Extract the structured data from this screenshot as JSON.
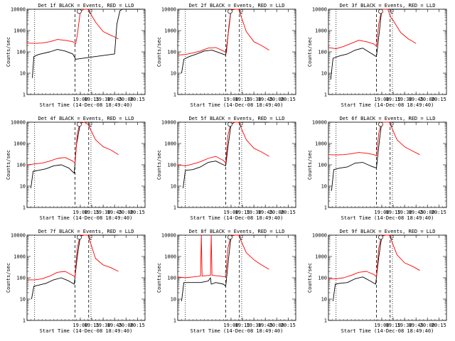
{
  "figure": {
    "xlabel": "Start Time (14-Dec-08 18:49:40)",
    "ylabel": "Counts/sec",
    "marker_o": "O",
    "marker_l": "L"
  },
  "colors": {
    "events": "#000000",
    "lld": "#ff0000",
    "axes": "#000000"
  },
  "chart_data": [
    {
      "type": "line",
      "title": "Det 1f BLACK = Events, RED = LLD",
      "xlabel": "Start Time (14-Dec-08 18:49:40)",
      "ylabel": "Counts/sec",
      "yscale": "log",
      "ylim": [
        1,
        10000
      ],
      "xlim": [
        "17:50",
        "20:25"
      ],
      "xticks": [
        "19:00",
        "19:15",
        "19:30",
        "19:45",
        "20:00",
        "20:15"
      ],
      "yticks": [
        "1",
        "10",
        "100",
        "1000",
        "10000"
      ],
      "grid": false,
      "series": [
        {
          "name": "Events",
          "x": [
            "17:57",
            "17:59",
            "18:05",
            "18:20",
            "18:30",
            "18:40",
            "18:50",
            "18:54",
            "19:45",
            "19:48",
            "19:52",
            "19:55",
            "20:00",
            "20:10",
            "20:20"
          ],
          "y": [
            6,
            60,
            75,
            100,
            130,
            110,
            80,
            45,
            80,
            2000,
            8500,
            10000,
            10000,
            10000,
            10000
          ]
        },
        {
          "name": "LLD",
          "x": [
            "17:50",
            "18:00",
            "18:10",
            "18:20",
            "18:30",
            "18:40",
            "18:50",
            "18:54",
            "18:56",
            "19:00",
            "19:05",
            "19:10",
            "19:20",
            "19:30",
            "19:40",
            "19:45",
            "19:50"
          ],
          "y": [
            260,
            250,
            260,
            300,
            380,
            350,
            300,
            240,
            600,
            8000,
            10000,
            10000,
            2500,
            900,
            600,
            500,
            400
          ]
        }
      ],
      "vlines": [
        "18:00",
        "18:53",
        "19:11",
        "19:14"
      ]
    },
    {
      "type": "line",
      "title": "Det 2f BLACK = Events, RED = LLD",
      "xlabel": "Start Time (14-Dec-08 18:49:40)",
      "ylabel": "Counts/sec",
      "yscale": "log",
      "ylim": [
        1,
        10000
      ],
      "xlim": [
        "17:50",
        "20:25"
      ],
      "xticks": [
        "19:00",
        "19:15",
        "19:30",
        "19:45",
        "20:00",
        "20:15"
      ],
      "yticks": [
        "1",
        "10",
        "100",
        "1000",
        "10000"
      ],
      "grid": false,
      "series": [
        {
          "name": "Events",
          "x": [
            "17:55",
            "17:58",
            "18:05",
            "18:15",
            "18:25",
            "18:35",
            "18:45",
            "18:53",
            "18:56",
            "19:00",
            "19:05",
            "19:10",
            "19:25",
            "19:50"
          ],
          "y": [
            10,
            45,
            60,
            80,
            110,
            120,
            90,
            70,
            600,
            9000,
            10000,
            10000,
            10000,
            10000
          ]
        },
        {
          "name": "LLD",
          "x": [
            "17:50",
            "18:00",
            "18:10",
            "18:20",
            "18:30",
            "18:40",
            "18:50",
            "18:54",
            "18:57",
            "19:00",
            "19:05",
            "19:10",
            "19:20",
            "19:30",
            "19:40",
            "19:50"
          ],
          "y": [
            70,
            75,
            90,
            110,
            150,
            160,
            110,
            90,
            1500,
            10000,
            10000,
            10000,
            900,
            300,
            200,
            120
          ]
        }
      ],
      "vlines": [
        "18:00",
        "18:53",
        "19:11",
        "19:14"
      ]
    },
    {
      "type": "line",
      "title": "Det 3f BLACK = Events, RED = LLD",
      "xlabel": "Start Time (14-Dec-08 18:49:40)",
      "ylabel": "Counts/sec",
      "yscale": "log",
      "ylim": [
        1,
        10000
      ],
      "xlim": [
        "17:50",
        "20:25"
      ],
      "xticks": [
        "19:00",
        "19:15",
        "19:30",
        "19:45",
        "20:00",
        "20:15"
      ],
      "yticks": [
        "1",
        "10",
        "100",
        "1000",
        "10000"
      ],
      "grid": false,
      "series": [
        {
          "name": "Events",
          "x": [
            "17:53",
            "17:56",
            "18:05",
            "18:15",
            "18:25",
            "18:35",
            "18:45",
            "18:53",
            "18:57",
            "19:00",
            "19:05",
            "19:50"
          ],
          "y": [
            5,
            50,
            65,
            80,
            120,
            150,
            90,
            60,
            1000,
            10000,
            10000,
            10000
          ]
        },
        {
          "name": "LLD",
          "x": [
            "17:50",
            "18:00",
            "18:10",
            "18:20",
            "18:30",
            "18:40",
            "18:50",
            "18:53",
            "18:56",
            "19:00",
            "19:08",
            "19:12",
            "19:15",
            "19:25",
            "19:35",
            "19:45"
          ],
          "y": [
            160,
            140,
            180,
            250,
            350,
            300,
            230,
            180,
            2000,
            10000,
            10000,
            4000,
            3000,
            800,
            400,
            250
          ]
        }
      ],
      "vlines": [
        "18:00",
        "18:53",
        "19:11",
        "19:14"
      ]
    },
    {
      "type": "line",
      "title": "Det 4f BLACK = Events, RED = LLD",
      "xlabel": "Start Time (14-Dec-08 18:49:40)",
      "ylabel": "Counts/sec",
      "yscale": "log",
      "ylim": [
        1,
        10000
      ],
      "xlim": [
        "17:50",
        "20:25"
      ],
      "xticks": [
        "19:00",
        "19:15",
        "19:30",
        "19:45",
        "20:00",
        "20:15"
      ],
      "yticks": [
        "1",
        "10",
        "100",
        "1000",
        "10000"
      ],
      "grid": false,
      "series": [
        {
          "name": "Events",
          "x": [
            "17:55",
            "17:58",
            "18:05",
            "18:15",
            "18:25",
            "18:35",
            "18:45",
            "18:52",
            "18:55",
            "19:00",
            "19:05",
            "19:50"
          ],
          "y": [
            8,
            50,
            55,
            65,
            90,
            100,
            70,
            40,
            900,
            9000,
            10000,
            10000
          ]
        },
        {
          "name": "LLD",
          "x": [
            "17:50",
            "18:00",
            "18:10",
            "18:20",
            "18:30",
            "18:40",
            "18:50",
            "18:53",
            "18:56",
            "19:00",
            "19:05",
            "19:10",
            "19:20",
            "19:30",
            "19:40",
            "19:50"
          ],
          "y": [
            100,
            110,
            120,
            150,
            200,
            220,
            150,
            120,
            3000,
            10000,
            10000,
            8000,
            1500,
            700,
            500,
            300
          ]
        }
      ],
      "vlines": [
        "18:00",
        "18:53",
        "19:11",
        "19:14"
      ]
    },
    {
      "type": "line",
      "title": "Det 5f BLACK = Events, RED = LLD",
      "xlabel": "Start Time (14-Dec-08 18:49:40)",
      "ylabel": "Counts/sec",
      "yscale": "log",
      "ylim": [
        1,
        10000
      ],
      "xlim": [
        "17:50",
        "20:25"
      ],
      "xticks": [
        "19:00",
        "19:15",
        "19:30",
        "19:45",
        "20:00",
        "20:15"
      ],
      "yticks": [
        "1",
        "10",
        "100",
        "1000",
        "10000"
      ],
      "grid": false,
      "series": [
        {
          "name": "Events",
          "x": [
            "17:57",
            "18:00",
            "18:10",
            "18:20",
            "18:30",
            "18:40",
            "18:50",
            "18:53",
            "18:56",
            "19:00",
            "19:05",
            "19:50"
          ],
          "y": [
            8,
            55,
            60,
            80,
            130,
            150,
            100,
            90,
            700,
            8000,
            10000,
            10000
          ]
        },
        {
          "name": "LLD",
          "x": [
            "17:50",
            "18:00",
            "18:10",
            "18:20",
            "18:30",
            "18:40",
            "18:50",
            "18:53",
            "18:56",
            "19:00",
            "19:05",
            "19:10",
            "19:20",
            "19:30",
            "19:40",
            "19:50"
          ],
          "y": [
            100,
            90,
            110,
            140,
            200,
            250,
            160,
            120,
            2500,
            10000,
            10000,
            10000,
            1500,
            600,
            400,
            250
          ]
        }
      ],
      "vlines": [
        "18:00",
        "18:53",
        "19:11",
        "19:14"
      ]
    },
    {
      "type": "line",
      "title": "Det 6f BLACK = Events, RED = LLD",
      "xlabel": "Start Time (14-Dec-08 18:49:40)",
      "ylabel": "Counts/sec",
      "yscale": "log",
      "ylim": [
        1,
        10000
      ],
      "xlim": [
        "17:50",
        "20:25"
      ],
      "xticks": [
        "19:00",
        "19:15",
        "19:30",
        "19:45",
        "20:00",
        "20:15"
      ],
      "yticks": [
        "1",
        "10",
        "100",
        "1000",
        "10000"
      ],
      "grid": false,
      "series": [
        {
          "name": "Events",
          "x": [
            "17:54",
            "17:57",
            "18:05",
            "18:15",
            "18:25",
            "18:35",
            "18:45",
            "18:53",
            "18:57",
            "19:00",
            "19:05",
            "19:50"
          ],
          "y": [
            6,
            60,
            70,
            80,
            120,
            130,
            90,
            70,
            1500,
            10000,
            10000,
            10000
          ]
        },
        {
          "name": "LLD",
          "x": [
            "17:50",
            "18:00",
            "18:10",
            "18:20",
            "18:30",
            "18:40",
            "18:50",
            "18:53",
            "18:56",
            "19:00",
            "19:05",
            "19:10",
            "19:20",
            "19:30",
            "19:40",
            "19:50"
          ],
          "y": [
            300,
            290,
            300,
            330,
            380,
            350,
            300,
            260,
            3000,
            10000,
            10000,
            10000,
            1500,
            700,
            450,
            300
          ]
        }
      ],
      "vlines": [
        "18:00",
        "18:53",
        "19:11",
        "19:14"
      ]
    },
    {
      "type": "line",
      "title": "Det 7f BLACK = Events, RED = LLD",
      "xlabel": "Start Time (14-Dec-08 18:49:40)",
      "ylabel": "Counts/sec",
      "yscale": "log",
      "ylim": [
        1,
        10000
      ],
      "xlim": [
        "17:50",
        "20:25"
      ],
      "xticks": [
        "19:00",
        "19:15",
        "19:30",
        "19:45",
        "20:00",
        "20:15"
      ],
      "yticks": [
        "1",
        "10",
        "100",
        "1000",
        "10000"
      ],
      "grid": false,
      "series": [
        {
          "name": "Events",
          "x": [
            "17:56",
            "17:59",
            "18:05",
            "18:15",
            "18:25",
            "18:35",
            "18:45",
            "18:52",
            "18:56",
            "19:00",
            "19:05",
            "19:50"
          ],
          "y": [
            10,
            40,
            45,
            55,
            80,
            100,
            70,
            50,
            1000,
            9000,
            10000,
            10000
          ]
        },
        {
          "name": "LLD",
          "x": [
            "17:50",
            "18:00",
            "18:10",
            "18:20",
            "18:30",
            "18:40",
            "18:50",
            "18:53",
            "18:56",
            "19:00",
            "19:05",
            "19:10",
            "19:20",
            "19:30",
            "19:40",
            "19:50"
          ],
          "y": [
            80,
            80,
            90,
            120,
            180,
            200,
            130,
            110,
            2500,
            10000,
            10000,
            10000,
            800,
            400,
            300,
            200
          ]
        }
      ],
      "vlines": [
        "18:00",
        "18:53",
        "19:11",
        "19:14"
      ]
    },
    {
      "type": "line",
      "title": "Det 8f BLACK = Events, RED = LLD",
      "xlabel": "Start Time (14-Dec-08 18:49:40)",
      "ylabel": "Counts/sec",
      "yscale": "log",
      "ylim": [
        1,
        10000
      ],
      "xlim": [
        "17:50",
        "20:25"
      ],
      "xticks": [
        "19:00",
        "19:15",
        "19:30",
        "19:45",
        "20:00",
        "20:15"
      ],
      "yticks": [
        "1",
        "10",
        "100",
        "1000",
        "10000"
      ],
      "grid": false,
      "series": [
        {
          "name": "Events",
          "x": [
            "17:55",
            "17:58",
            "18:10",
            "18:20",
            "18:30",
            "18:33",
            "18:34",
            "18:40",
            "18:50",
            "18:53",
            "18:57",
            "19:00",
            "19:05",
            "19:50"
          ],
          "y": [
            8,
            60,
            60,
            60,
            70,
            100,
            50,
            60,
            50,
            40,
            1000,
            9000,
            10000,
            10000
          ]
        },
        {
          "name": "LLD",
          "x": [
            "17:50",
            "18:00",
            "18:10",
            "18:20",
            "18:21",
            "18:22",
            "18:33",
            "18:34",
            "18:35",
            "18:45",
            "18:53",
            "18:56",
            "19:00",
            "19:05",
            "19:10",
            "19:20",
            "19:30",
            "19:40",
            "19:50"
          ],
          "y": [
            110,
            100,
            110,
            120,
            10000,
            120,
            130,
            10000,
            130,
            120,
            110,
            2500,
            10000,
            10000,
            10000,
            1500,
            700,
            400,
            250
          ]
        }
      ],
      "vlines": [
        "18:00",
        "18:53",
        "19:11",
        "19:14"
      ]
    },
    {
      "type": "line",
      "title": "Det 9f BLACK = Events, RED = LLD",
      "xlabel": "Start Time (14-Dec-08 18:49:40)",
      "ylabel": "Counts/sec",
      "yscale": "log",
      "ylim": [
        1,
        10000
      ],
      "xlim": [
        "17:50",
        "20:25"
      ],
      "xticks": [
        "19:00",
        "19:15",
        "19:30",
        "19:45",
        "20:00",
        "20:15"
      ],
      "yticks": [
        "1",
        "10",
        "100",
        "1000",
        "10000"
      ],
      "grid": false,
      "series": [
        {
          "name": "Events",
          "x": [
            "17:56",
            "17:59",
            "18:05",
            "18:15",
            "18:25",
            "18:35",
            "18:45",
            "18:52",
            "18:56",
            "19:00",
            "19:05",
            "19:50"
          ],
          "y": [
            8,
            50,
            55,
            60,
            90,
            110,
            70,
            50,
            900,
            9000,
            10000,
            10000
          ]
        },
        {
          "name": "LLD",
          "x": [
            "17:50",
            "18:00",
            "18:10",
            "18:20",
            "18:30",
            "18:40",
            "18:50",
            "18:53",
            "18:56",
            "19:00",
            "19:05",
            "19:10",
            "19:20",
            "19:30",
            "19:40",
            "19:50"
          ],
          "y": [
            90,
            90,
            100,
            130,
            180,
            200,
            140,
            110,
            2500,
            10000,
            10000,
            10000,
            1200,
            500,
            350,
            220
          ]
        }
      ],
      "vlines": [
        "18:00",
        "18:53",
        "19:11",
        "19:14"
      ]
    }
  ]
}
